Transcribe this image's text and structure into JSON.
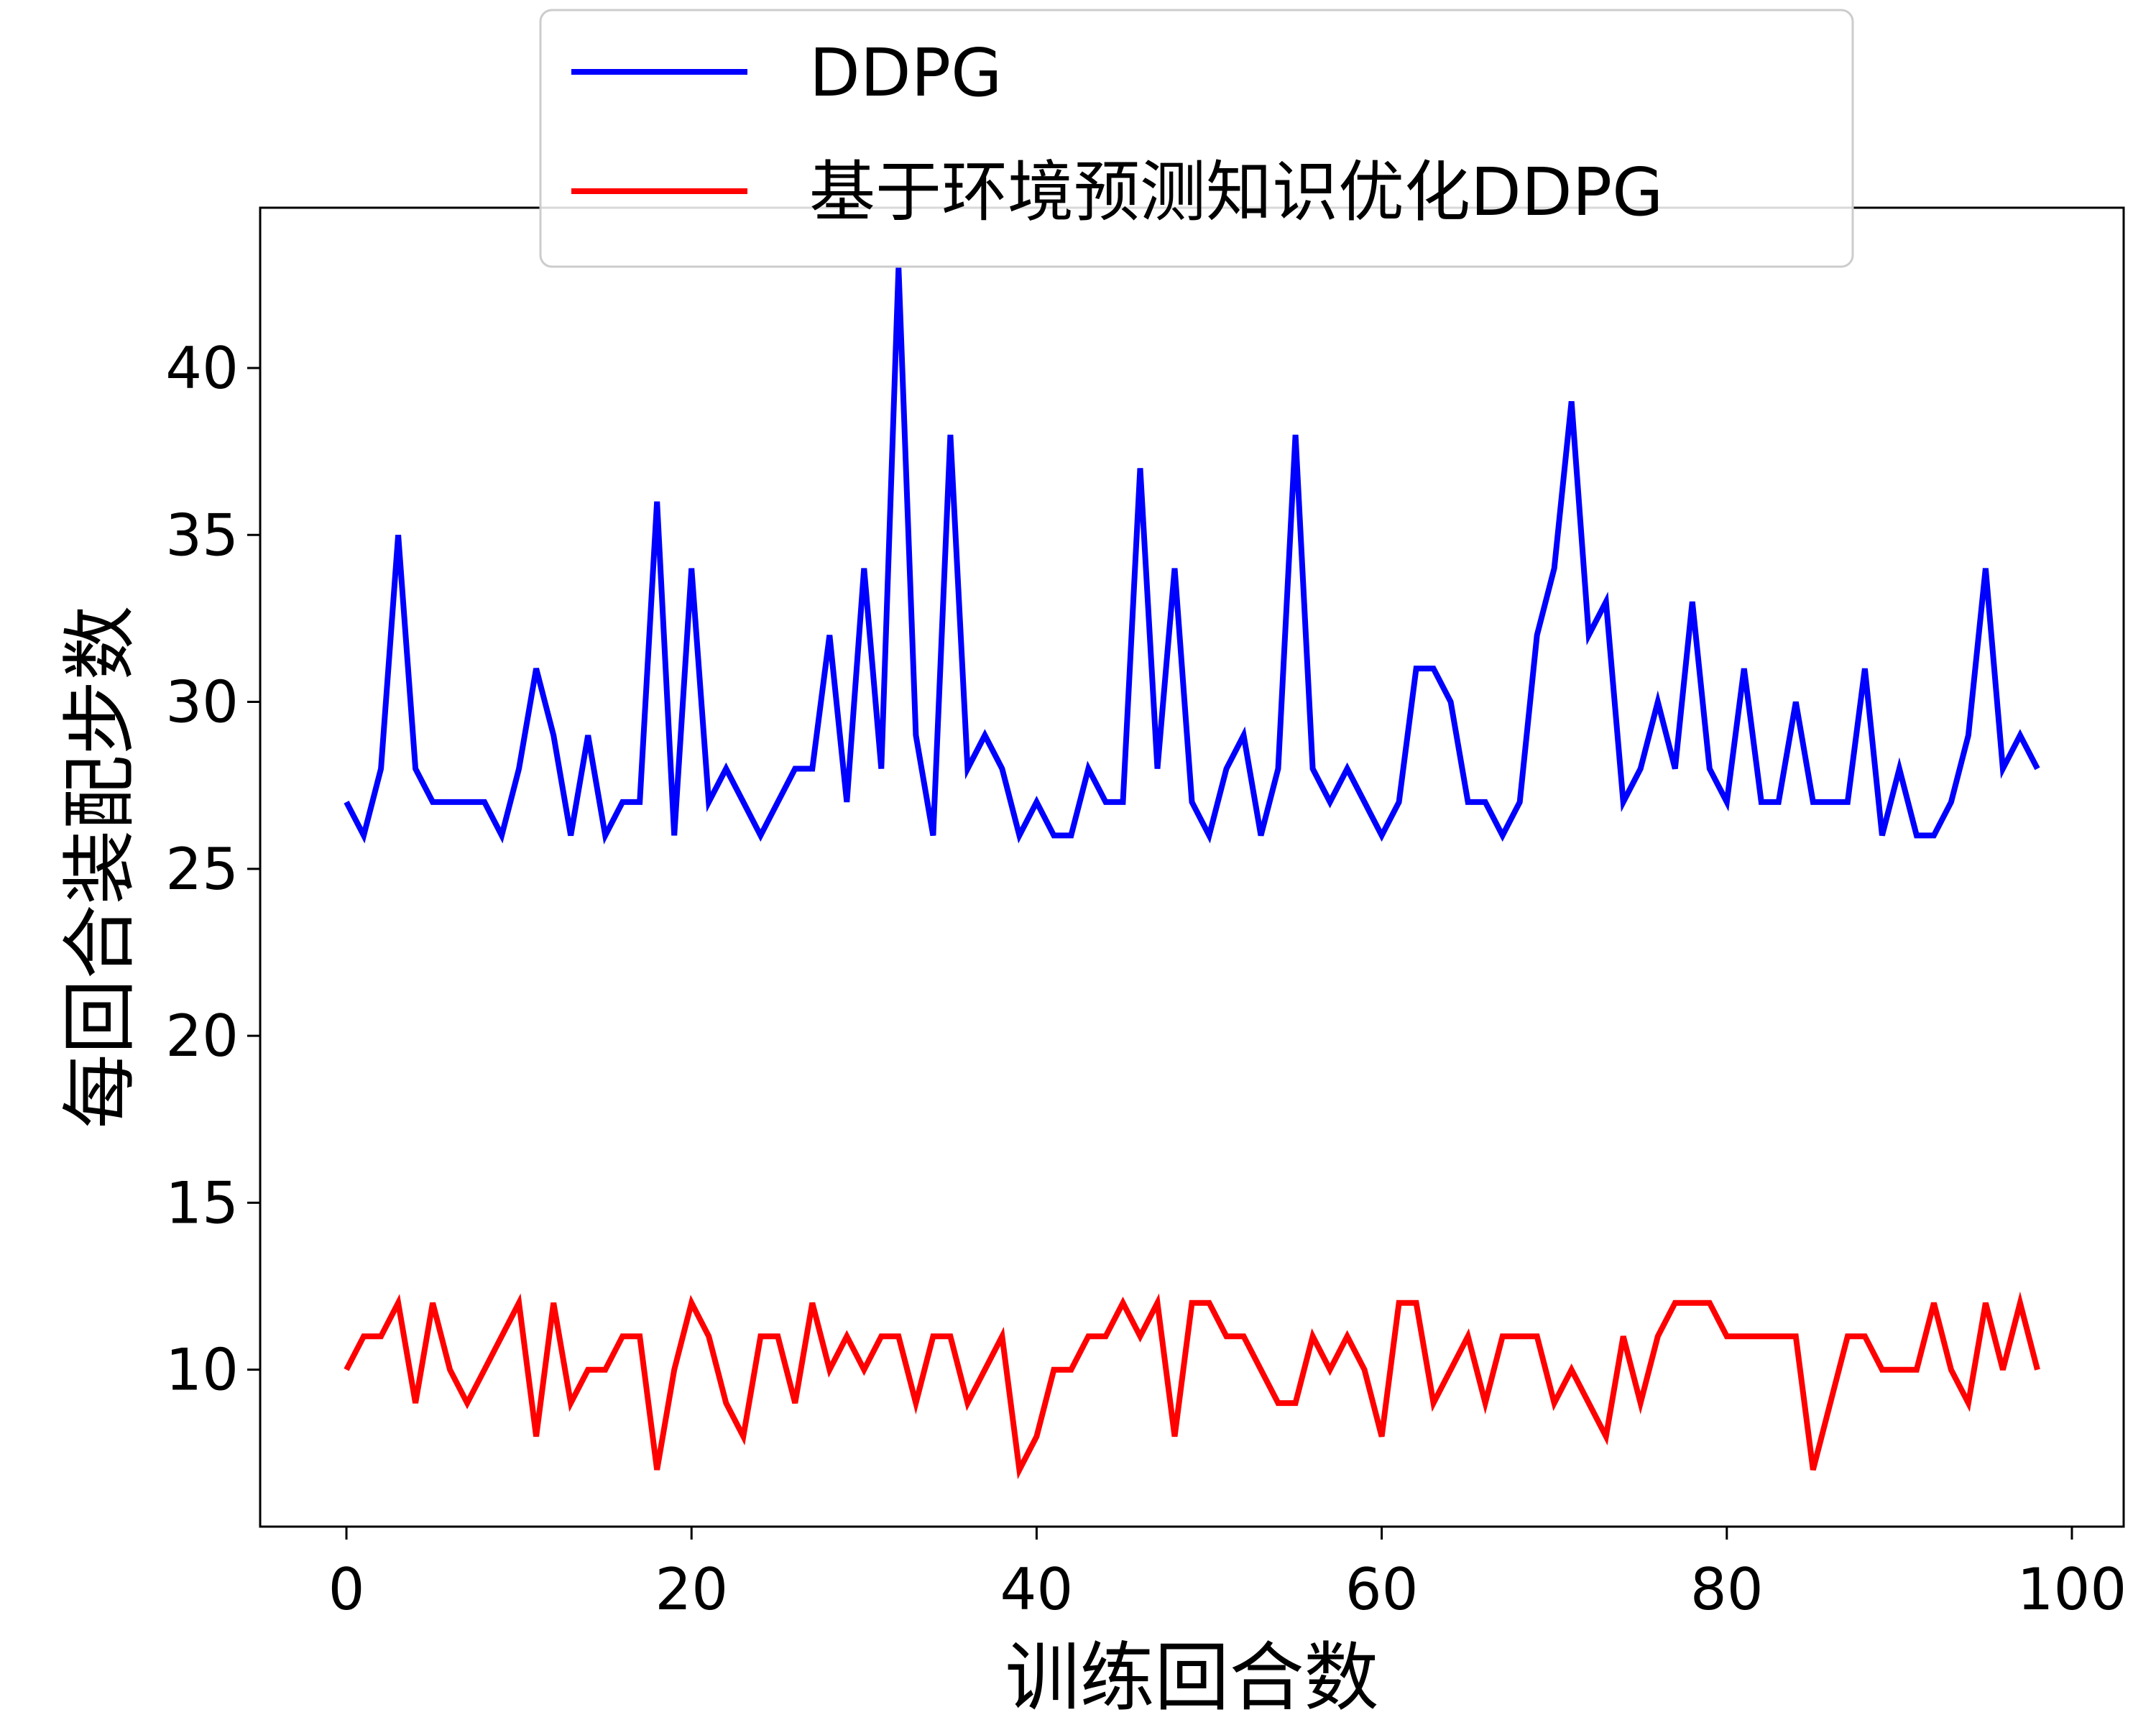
{
  "chart_data": {
    "type": "line",
    "xlabel": "训练回合数",
    "ylabel": "每回合装配步数",
    "xlim": [
      -5,
      103
    ],
    "ylim": [
      5.3,
      44.8
    ],
    "xticks": [
      0,
      20,
      40,
      60,
      80,
      100
    ],
    "yticks": [
      10,
      15,
      20,
      25,
      30,
      35,
      40
    ],
    "legend_position": "top-center",
    "grid": false,
    "series": [
      {
        "name": "DDPG",
        "color": "#0000ff",
        "values": [
          27,
          26,
          28,
          35,
          28,
          27,
          27,
          27,
          27,
          26,
          28,
          31,
          29,
          26,
          29,
          26,
          27,
          27,
          36,
          26,
          34,
          27,
          28,
          27,
          26,
          27,
          28,
          28,
          32,
          27,
          34,
          28,
          43,
          29,
          26,
          38,
          28,
          29,
          28,
          26,
          27,
          26,
          26,
          28,
          27,
          27,
          37,
          28,
          34,
          27,
          26,
          28,
          29,
          26,
          28,
          38,
          28,
          27,
          28,
          27,
          26,
          27,
          31,
          31,
          30,
          27,
          27,
          26,
          27,
          32,
          34,
          39,
          32,
          33,
          27,
          28,
          30,
          28,
          33,
          28,
          27,
          31,
          27,
          27,
          30,
          27,
          27,
          27,
          31,
          26,
          28,
          26,
          26,
          27,
          29,
          34,
          28,
          29,
          28
        ]
      },
      {
        "name": "基于环境预测知识优化DDPG",
        "color": "#ff0000",
        "values": [
          10,
          11,
          11,
          12,
          9,
          12,
          10,
          9,
          10,
          11,
          12,
          8,
          12,
          9,
          10,
          10,
          11,
          11,
          7,
          10,
          12,
          11,
          9,
          8,
          11,
          11,
          9,
          12,
          10,
          11,
          10,
          11,
          11,
          9,
          11,
          11,
          9,
          10,
          11,
          7,
          8,
          10,
          10,
          11,
          11,
          12,
          11,
          12,
          8,
          12,
          12,
          11,
          11,
          10,
          9,
          9,
          11,
          10,
          11,
          10,
          8,
          12,
          12,
          9,
          10,
          11,
          9,
          11,
          11,
          11,
          9,
          10,
          9,
          8,
          11,
          9,
          11,
          12,
          12,
          12,
          11,
          11,
          11,
          11,
          11,
          7,
          9,
          11,
          11,
          10,
          10,
          10,
          12,
          10,
          9,
          12,
          10,
          12,
          10
        ]
      }
    ]
  }
}
